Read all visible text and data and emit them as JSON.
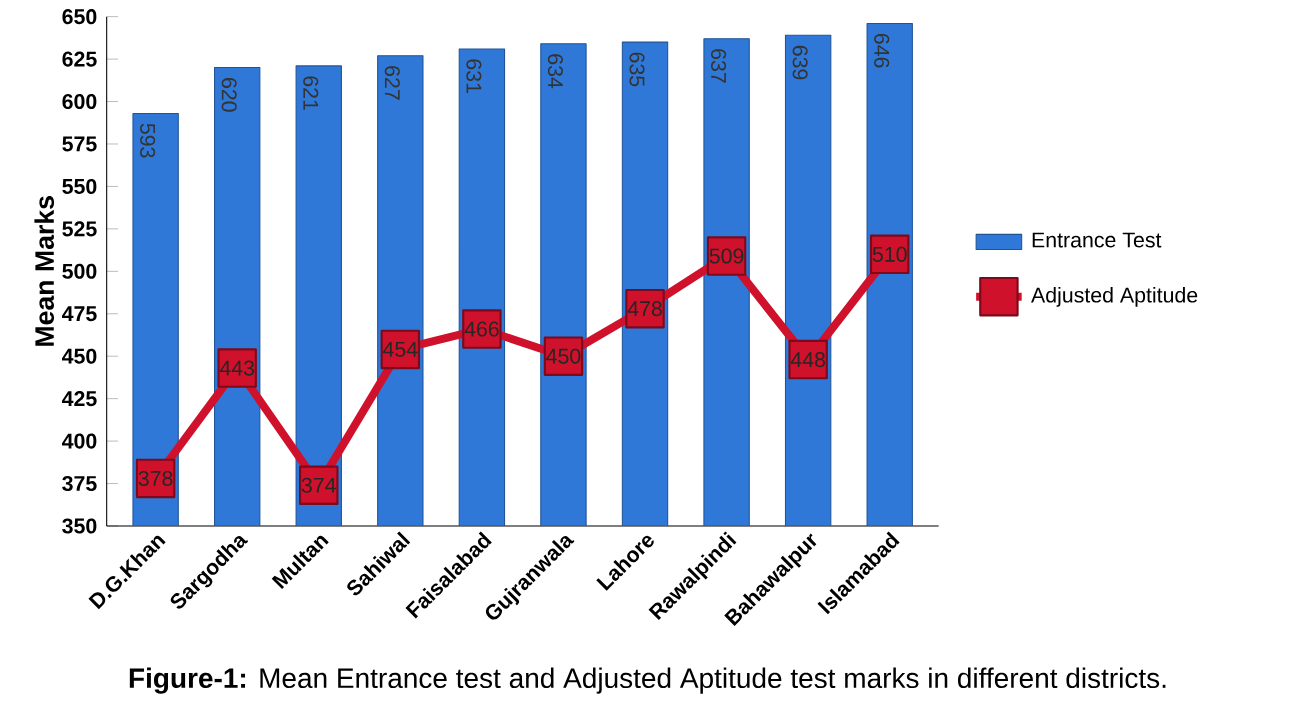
{
  "chart_data": {
    "type": "bar",
    "categories": [
      "D.G.Khan",
      "Sargodha",
      "Multan",
      "Sahiwal",
      "Faisalabad",
      "Gujranwala",
      "Lahore",
      "Rawalpindi",
      "Bahawalpur",
      "Islamabad"
    ],
    "series": [
      {
        "name": "Entrance Test",
        "color": "#2f78d8",
        "values": [
          593,
          620,
          621,
          627,
          631,
          634,
          635,
          637,
          639,
          646
        ]
      },
      {
        "name": "Adjusted Aptitude",
        "type": "line",
        "color": "#d0112b",
        "values": [
          378,
          443,
          374,
          454,
          466,
          450,
          478,
          509,
          448,
          510
        ]
      }
    ],
    "ylabel": "Mean Marks",
    "ylim": [
      350,
      650
    ],
    "yticks": [
      350,
      375,
      400,
      425,
      450,
      475,
      500,
      525,
      550,
      575,
      600,
      625,
      650
    ],
    "data_labels": true,
    "legend": "right",
    "marker": "square",
    "line_style": "solid",
    "grid": false,
    "annotations": [
      "**Figure-1:** Mean Entrance test and Adjusted Aptitude test marks in different districts."
    ]
  }
}
